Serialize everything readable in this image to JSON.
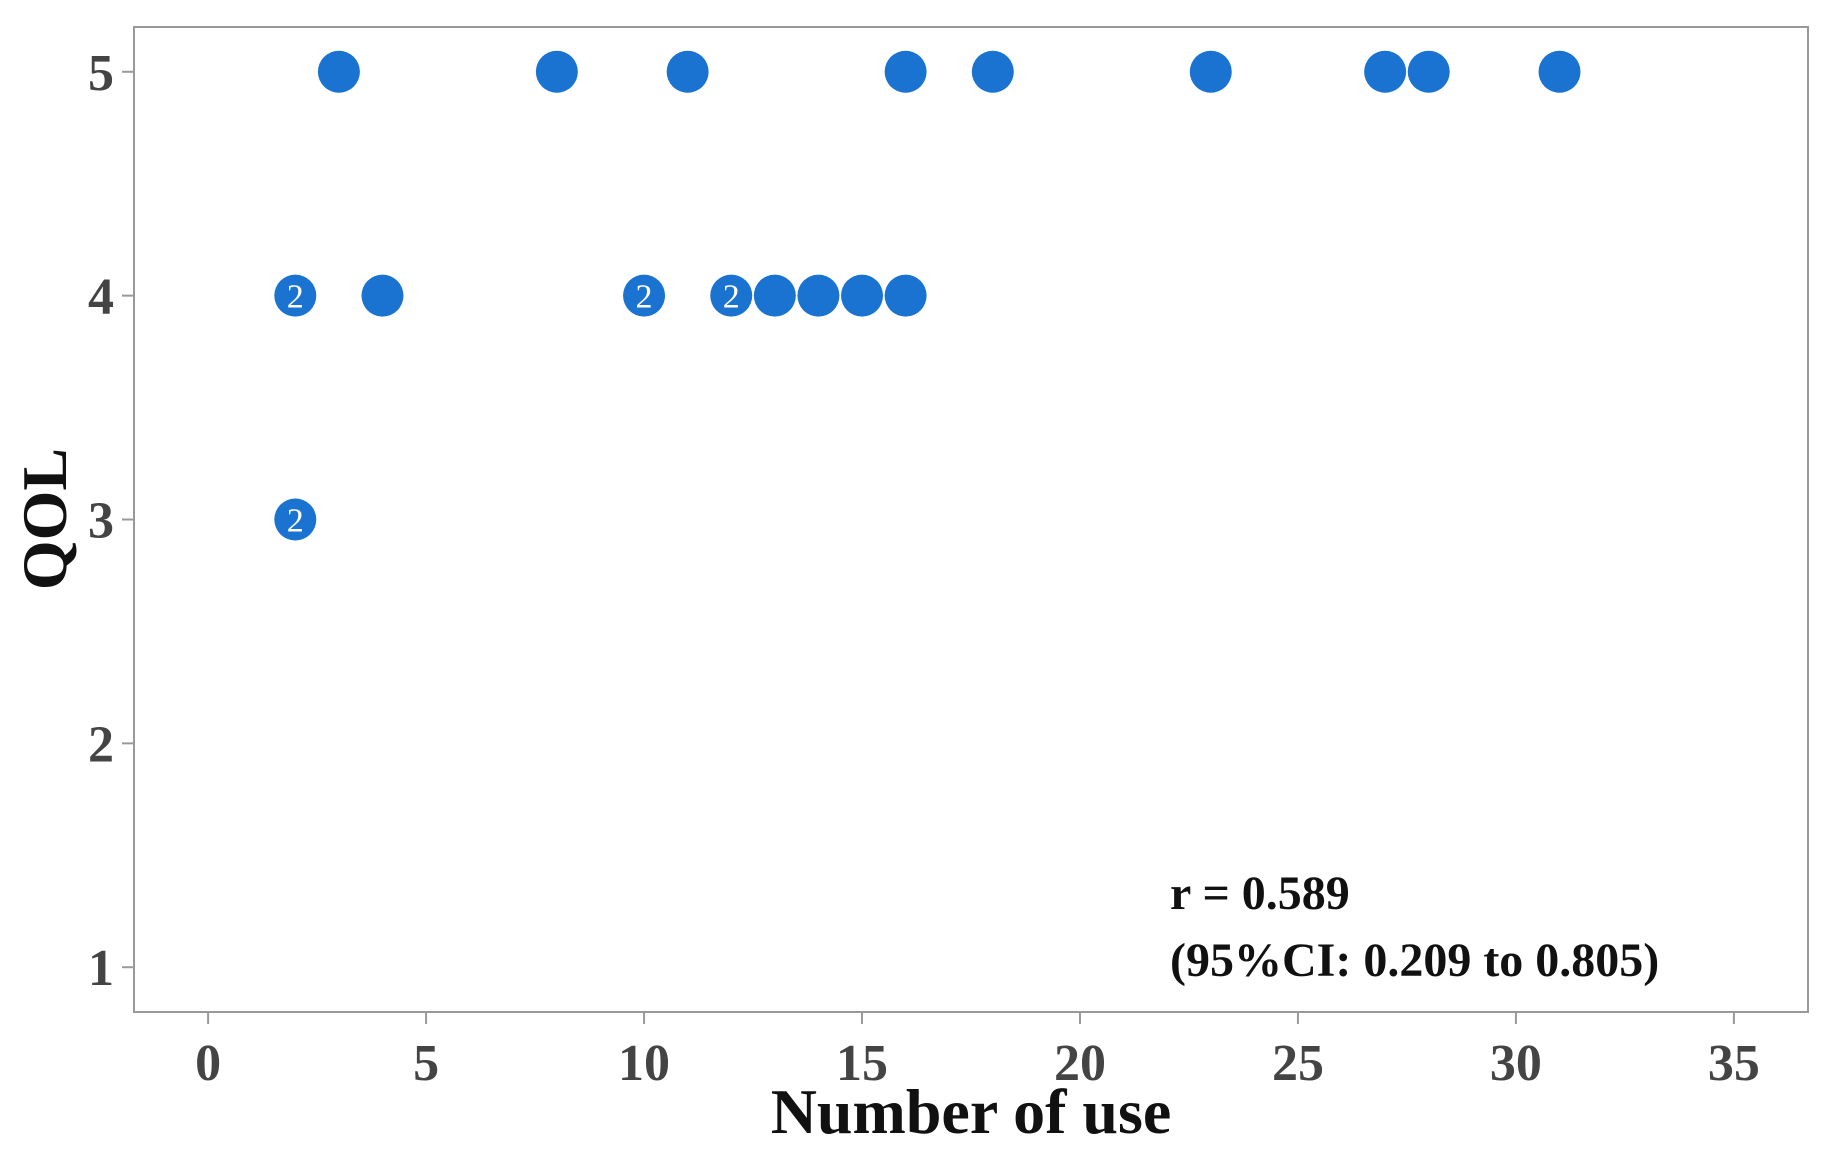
{
  "chart_data": {
    "type": "scatter",
    "title": "",
    "xlabel": "Number of use",
    "ylabel": "QOL",
    "xlim": [
      -1.7,
      36.7
    ],
    "ylim": [
      0.8,
      5.2
    ],
    "xticks": [
      0,
      5,
      10,
      15,
      20,
      25,
      30,
      35
    ],
    "yticks": [
      1,
      2,
      3,
      4,
      5
    ],
    "grid": false,
    "marker_color": "#1a73d0",
    "points": [
      {
        "x": 3,
        "y": 5
      },
      {
        "x": 8,
        "y": 5
      },
      {
        "x": 11,
        "y": 5
      },
      {
        "x": 16,
        "y": 5
      },
      {
        "x": 18,
        "y": 5
      },
      {
        "x": 23,
        "y": 5
      },
      {
        "x": 27,
        "y": 5
      },
      {
        "x": 28,
        "y": 5
      },
      {
        "x": 31,
        "y": 5
      },
      {
        "x": 2,
        "y": 4,
        "count": "2"
      },
      {
        "x": 4,
        "y": 4
      },
      {
        "x": 10,
        "y": 4,
        "count": "2"
      },
      {
        "x": 12,
        "y": 4,
        "count": "2"
      },
      {
        "x": 13,
        "y": 4
      },
      {
        "x": 14,
        "y": 4
      },
      {
        "x": 15,
        "y": 4
      },
      {
        "x": 16,
        "y": 4
      },
      {
        "x": 2,
        "y": 3,
        "count": "2"
      }
    ],
    "annotation": {
      "line1": "r = 0.589",
      "line2": "(95%CI: 0.209 to 0.805)"
    }
  }
}
